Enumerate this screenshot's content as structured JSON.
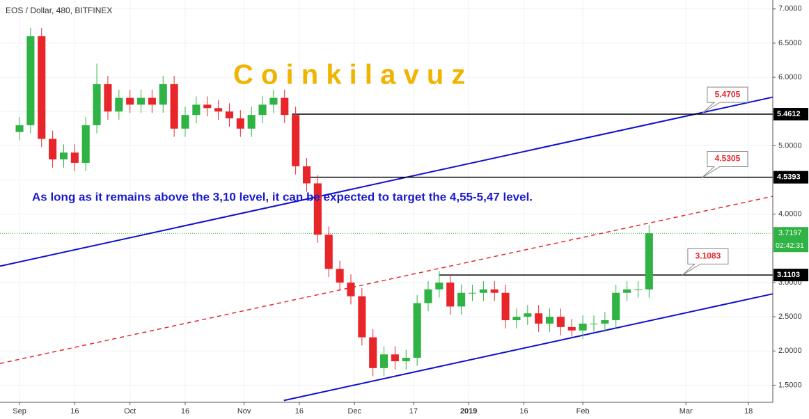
{
  "chart_data": {
    "type": "candlestick",
    "title": "EOS / Dollar, 480, BITFINEX",
    "watermark": "C o i n k i l a v u z",
    "annotation": "As long as it remains above the 3,10 level, it can be expected to target the 4,55-5,47 level.",
    "up_color": "#2fb344",
    "down_color": "#e8262a",
    "grid": true,
    "xlim": [
      -5.3,
      204.6
    ],
    "ylim": [
      1.25,
      7.13
    ],
    "xticks": [
      {
        "value": 0,
        "label": "Sep"
      },
      {
        "value": 15,
        "label": "16"
      },
      {
        "value": 30,
        "label": "Oct"
      },
      {
        "value": 45,
        "label": "16"
      },
      {
        "value": 61,
        "label": "Nov"
      },
      {
        "value": 76,
        "label": "16"
      },
      {
        "value": 91,
        "label": "Dec"
      },
      {
        "value": 107,
        "label": "17"
      },
      {
        "value": 122,
        "label": "2019"
      },
      {
        "value": 137,
        "label": "16"
      },
      {
        "value": 153,
        "label": "Feb"
      },
      {
        "value": 181,
        "label": "Mar"
      },
      {
        "value": 198,
        "label": "18"
      }
    ],
    "yticks": [
      {
        "value": 1.5,
        "label": "1.5000"
      },
      {
        "value": 2,
        "label": "2.0000"
      },
      {
        "value": 2.5,
        "label": "2.5000"
      },
      {
        "value": 3,
        "label": "3.0000"
      },
      {
        "value": 3.5,
        "label": "3.5000"
      },
      {
        "value": 4,
        "label": "4.0000"
      },
      {
        "value": 4.5,
        "label": "4.5000"
      },
      {
        "value": 5,
        "label": "5.0000"
      },
      {
        "value": 5.5,
        "label": "5.5000"
      },
      {
        "value": 6,
        "label": "6.0000"
      },
      {
        "value": 6.5,
        "label": "6.5000"
      },
      {
        "value": 7,
        "label": "7.0000"
      }
    ],
    "x": [
      0,
      3,
      6,
      9,
      12,
      15,
      18,
      21,
      24,
      27,
      30,
      33,
      36,
      39,
      42,
      45,
      48,
      51,
      54,
      57,
      60,
      63,
      66,
      69,
      72,
      75,
      78,
      81,
      84,
      87,
      90,
      93,
      96,
      99,
      102,
      105,
      108,
      111,
      114,
      117,
      120,
      123,
      126,
      129,
      132,
      135,
      138,
      141,
      144,
      147,
      150,
      153,
      156,
      159,
      162,
      165,
      168,
      171
    ],
    "open": [
      5.2,
      5.3,
      6.6,
      5.1,
      4.8,
      4.9,
      4.75,
      5.3,
      5.9,
      5.5,
      5.7,
      5.6,
      5.7,
      5.6,
      5.9,
      5.25,
      5.45,
      5.6,
      5.55,
      5.5,
      5.4,
      5.25,
      5.45,
      5.6,
      5.7,
      5.45,
      4.7,
      4.45,
      3.7,
      3.2,
      3.0,
      2.8,
      2.2,
      1.75,
      1.95,
      1.85,
      1.9,
      2.7,
      2.9,
      3.0,
      2.65,
      2.85,
      2.85,
      2.9,
      2.85,
      2.45,
      2.5,
      2.55,
      2.4,
      2.5,
      2.35,
      2.3,
      2.4,
      2.4,
      2.45,
      2.85,
      2.9,
      2.9
    ],
    "high": [
      5.42,
      6.72,
      6.72,
      5.22,
      5.02,
      5.02,
      5.42,
      6.2,
      6.02,
      5.82,
      5.82,
      5.82,
      5.82,
      6.02,
      6.02,
      5.57,
      5.72,
      5.72,
      5.67,
      5.62,
      5.52,
      5.57,
      5.72,
      5.82,
      5.82,
      5.57,
      4.82,
      4.57,
      3.82,
      3.32,
      3.12,
      2.92,
      2.32,
      2.07,
      2.07,
      2.02,
      2.82,
      3.02,
      3.17,
      3.12,
      2.97,
      2.97,
      3.02,
      3.02,
      2.97,
      2.62,
      2.67,
      2.67,
      2.62,
      2.62,
      2.47,
      2.52,
      2.52,
      2.57,
      2.97,
      3.02,
      3.02,
      3.84
    ],
    "low": [
      5.08,
      5.18,
      4.98,
      4.68,
      4.68,
      4.63,
      4.63,
      5.18,
      5.38,
      5.38,
      5.48,
      5.48,
      5.48,
      5.48,
      5.13,
      5.13,
      5.33,
      5.43,
      5.38,
      5.28,
      5.13,
      5.13,
      5.33,
      5.48,
      5.33,
      4.58,
      4.33,
      3.58,
      3.08,
      2.88,
      2.68,
      2.08,
      1.63,
      1.63,
      1.73,
      1.73,
      1.78,
      2.58,
      2.78,
      2.53,
      2.53,
      2.73,
      2.73,
      2.73,
      2.33,
      2.33,
      2.38,
      2.28,
      2.28,
      2.23,
      2.18,
      2.18,
      2.28,
      2.28,
      2.33,
      2.73,
      2.78,
      2.78
    ],
    "close": [
      5.3,
      6.6,
      5.1,
      4.8,
      4.9,
      4.75,
      5.3,
      5.9,
      5.5,
      5.7,
      5.6,
      5.7,
      5.6,
      5.9,
      5.25,
      5.45,
      5.6,
      5.55,
      5.5,
      5.4,
      5.25,
      5.45,
      5.6,
      5.7,
      5.45,
      4.7,
      4.45,
      3.7,
      3.2,
      3.0,
      2.8,
      2.2,
      1.75,
      1.95,
      1.85,
      1.9,
      2.7,
      2.9,
      3.0,
      2.65,
      2.85,
      2.85,
      2.9,
      2.85,
      2.45,
      2.5,
      2.55,
      2.4,
      2.5,
      2.35,
      2.3,
      2.4,
      2.4,
      2.45,
      2.85,
      2.9,
      2.9,
      3.72
    ],
    "trendlines": [
      {
        "color": "#1010d0",
        "dashed": false,
        "x": [
          -5.3,
          204.6
        ],
        "y": [
          3.24,
          5.71
        ]
      },
      {
        "color": "#1010d0",
        "dashed": false,
        "x": [
          71.8,
          204.6
        ],
        "y": [
          1.277,
          2.835
        ]
      },
      {
        "color": "#e8262a",
        "dashed": true,
        "x": [
          -5.3,
          204.6
        ],
        "y": [
          1.817,
          4.261
        ]
      }
    ],
    "levels": [
      {
        "value": 5.4612,
        "start": 74
      },
      {
        "value": 4.5393,
        "start": 79
      },
      {
        "value": 3.1103,
        "start": 114
      }
    ],
    "callouts": [
      {
        "value": 5.4705,
        "x": 185.3
      },
      {
        "value": 4.5305,
        "x": 185.3
      },
      {
        "value": 3.1083,
        "x": 180
      }
    ],
    "last_price": 3.7197,
    "countdown": "02:42:31"
  }
}
